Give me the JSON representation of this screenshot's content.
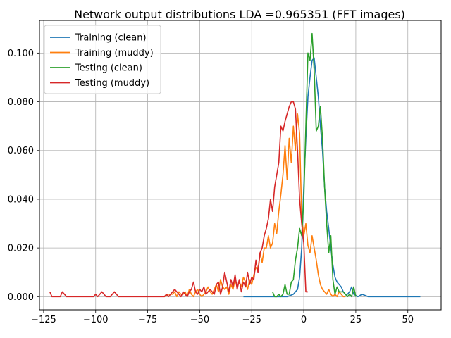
{
  "chart_data": {
    "type": "line",
    "title": "Network output distributions LDA =0.965351 (FFT images)",
    "xlabel": "",
    "ylabel": "",
    "xlim": [
      -127,
      66
    ],
    "ylim": [
      -0.0054,
      0.1134
    ],
    "xticks": [
      -125,
      -100,
      -75,
      -50,
      -25,
      0,
      25,
      50
    ],
    "xtick_labels": [
      "−125",
      "−100",
      "−75",
      "−50",
      "−25",
      "0",
      "25",
      "50"
    ],
    "yticks": [
      0.0,
      0.02,
      0.04,
      0.06,
      0.08,
      0.1
    ],
    "ytick_labels": [
      "0.000",
      "0.020",
      "0.040",
      "0.060",
      "0.080",
      "0.100"
    ],
    "grid": true,
    "legend_position": "top-left",
    "series": [
      {
        "name": "Training (clean)",
        "color": "#1f77b4",
        "x": [
          -29,
          -26,
          -23,
          -20,
          -17,
          -14,
          -11,
          -8,
          -5,
          -3,
          -2,
          -1,
          0,
          1,
          2,
          3,
          4,
          5,
          6,
          7,
          8,
          9,
          10,
          11,
          12,
          13,
          14,
          15,
          16,
          17,
          18,
          19,
          20,
          21,
          22,
          23,
          24,
          26,
          28,
          31,
          34,
          37,
          40,
          43,
          46,
          49,
          52,
          56
        ],
        "y": [
          0.0,
          0.0,
          0.0,
          0.0,
          0.0,
          0.0,
          0.0,
          0.0,
          0.001,
          0.003,
          0.008,
          0.02,
          0.045,
          0.065,
          0.082,
          0.09,
          0.097,
          0.098,
          0.09,
          0.082,
          0.07,
          0.06,
          0.045,
          0.035,
          0.028,
          0.02,
          0.013,
          0.008,
          0.006,
          0.005,
          0.004,
          0.002,
          0.001,
          0.001,
          0.002,
          0.004,
          0.001,
          0.0,
          0.001,
          0.0,
          0.0,
          0.0,
          0.0,
          0.0,
          0.0,
          0.0,
          0.0,
          0.0
        ]
      },
      {
        "name": "Training (muddy)",
        "color": "#ff7f0e",
        "x": [
          -67,
          -65,
          -63,
          -62,
          -61,
          -60,
          -59,
          -58,
          -57,
          -56,
          -55,
          -54,
          -53,
          -52,
          -51,
          -50,
          -49,
          -48,
          -47,
          -46,
          -45,
          -44,
          -43,
          -42,
          -41,
          -40,
          -39,
          -38,
          -37,
          -36,
          -35,
          -34,
          -33,
          -32,
          -31,
          -30,
          -29,
          -28,
          -27,
          -26,
          -25,
          -24,
          -23,
          -22,
          -21,
          -20,
          -19,
          -18,
          -17,
          -16,
          -15,
          -14,
          -13,
          -12,
          -11,
          -10,
          -9,
          -8,
          -7,
          -6,
          -5,
          -4,
          -3,
          -2,
          -1,
          0,
          1,
          2,
          3,
          4,
          5,
          6,
          7,
          8,
          9,
          10,
          11,
          12,
          13,
          14,
          15,
          16,
          17,
          18,
          19,
          20
        ],
        "y": [
          0.0,
          0.001,
          0.001,
          0.002,
          0.0,
          0.002,
          0.001,
          0.001,
          0.002,
          0.0,
          0.003,
          0.001,
          0.0,
          0.002,
          0.003,
          0.001,
          0.0,
          0.001,
          0.002,
          0.004,
          0.002,
          0.001,
          0.003,
          0.005,
          0.002,
          0.007,
          0.004,
          0.003,
          0.004,
          0.001,
          0.005,
          0.003,
          0.007,
          0.004,
          0.006,
          0.004,
          0.008,
          0.006,
          0.003,
          0.007,
          0.005,
          0.009,
          0.012,
          0.011,
          0.018,
          0.014,
          0.02,
          0.02,
          0.025,
          0.02,
          0.022,
          0.03,
          0.026,
          0.035,
          0.042,
          0.05,
          0.062,
          0.048,
          0.065,
          0.055,
          0.07,
          0.06,
          0.075,
          0.067,
          0.032,
          0.025,
          0.03,
          0.021,
          0.018,
          0.025,
          0.02,
          0.015,
          0.009,
          0.005,
          0.003,
          0.002,
          0.001,
          0.003,
          0.001,
          0.0,
          0.001,
          0.0,
          0.002,
          0.001,
          0.0,
          0.0
        ]
      },
      {
        "name": "Testing (clean)",
        "color": "#2ca02c",
        "x": [
          -15,
          -14,
          -13,
          -12,
          -11,
          -10,
          -9,
          -8,
          -7,
          -6,
          -5,
          -4,
          -3,
          -2,
          -1,
          0,
          1,
          2,
          3,
          4,
          5,
          6,
          7,
          8,
          9,
          10,
          11,
          12,
          13,
          14,
          15,
          16,
          17,
          18,
          19,
          20,
          21,
          22,
          23,
          24,
          25
        ],
        "y": [
          0.002,
          0.0,
          0.0,
          0.001,
          0.0,
          0.001,
          0.005,
          0.001,
          0.001,
          0.006,
          0.007,
          0.015,
          0.02,
          0.028,
          0.025,
          0.04,
          0.07,
          0.1,
          0.097,
          0.108,
          0.093,
          0.068,
          0.07,
          0.078,
          0.065,
          0.045,
          0.03,
          0.018,
          0.025,
          0.007,
          0.001,
          0.004,
          0.002,
          0.002,
          0.002,
          0.001,
          0.0,
          0.001,
          0.0,
          0.004,
          0.0
        ]
      },
      {
        "name": "Testing (muddy)",
        "color": "#d62728",
        "x": [
          -122,
          -121,
          -119,
          -117,
          -116,
          -114,
          -112,
          -110,
          -108,
          -106,
          -104,
          -102,
          -101,
          -100,
          -99,
          -97,
          -95,
          -94,
          -93,
          -91,
          -89,
          -88,
          -87,
          -85,
          -83,
          -81,
          -79,
          -77,
          -75,
          -73,
          -71,
          -69,
          -67,
          -66,
          -65,
          -64,
          -63,
          -62,
          -61,
          -60,
          -59,
          -58,
          -57,
          -56,
          -55,
          -54,
          -53,
          -52,
          -51,
          -50,
          -49,
          -48,
          -47,
          -46,
          -45,
          -44,
          -43,
          -42,
          -41,
          -40,
          -39,
          -38,
          -37,
          -36,
          -35,
          -34,
          -33,
          -32,
          -31,
          -30,
          -29,
          -28,
          -27,
          -26,
          -25,
          -24,
          -23,
          -22,
          -21,
          -20,
          -19,
          -18,
          -17,
          -16,
          -15,
          -14,
          -13,
          -12,
          -11,
          -10,
          -9,
          -8,
          -7,
          -6,
          -5,
          -4,
          -3,
          -2,
          -1,
          0,
          1,
          2
        ],
        "y": [
          0.002,
          0.0,
          0.0,
          0.0,
          0.002,
          0.0,
          0.0,
          0.0,
          0.0,
          0.0,
          0.0,
          0.0,
          0.0,
          0.001,
          0.0,
          0.002,
          0.0,
          0.0,
          0.0,
          0.002,
          0.0,
          0.0,
          0.0,
          0.0,
          0.0,
          0.0,
          0.0,
          0.0,
          0.0,
          0.0,
          0.0,
          0.0,
          0.0,
          0.001,
          0.0,
          0.001,
          0.002,
          0.003,
          0.002,
          0.001,
          0.0,
          0.002,
          0.001,
          0.0,
          0.002,
          0.003,
          0.006,
          0.002,
          0.001,
          0.003,
          0.002,
          0.004,
          0.001,
          0.002,
          0.003,
          0.002,
          0.001,
          0.005,
          0.006,
          0.001,
          0.004,
          0.01,
          0.006,
          0.002,
          0.007,
          0.004,
          0.009,
          0.003,
          0.007,
          0.002,
          0.006,
          0.004,
          0.01,
          0.005,
          0.008,
          0.007,
          0.015,
          0.01,
          0.018,
          0.02,
          0.025,
          0.028,
          0.032,
          0.04,
          0.035,
          0.045,
          0.05,
          0.055,
          0.07,
          0.068,
          0.072,
          0.075,
          0.078,
          0.08,
          0.08,
          0.077,
          0.06,
          0.04,
          0.03,
          0.022,
          0.002,
          0.002
        ]
      }
    ]
  }
}
